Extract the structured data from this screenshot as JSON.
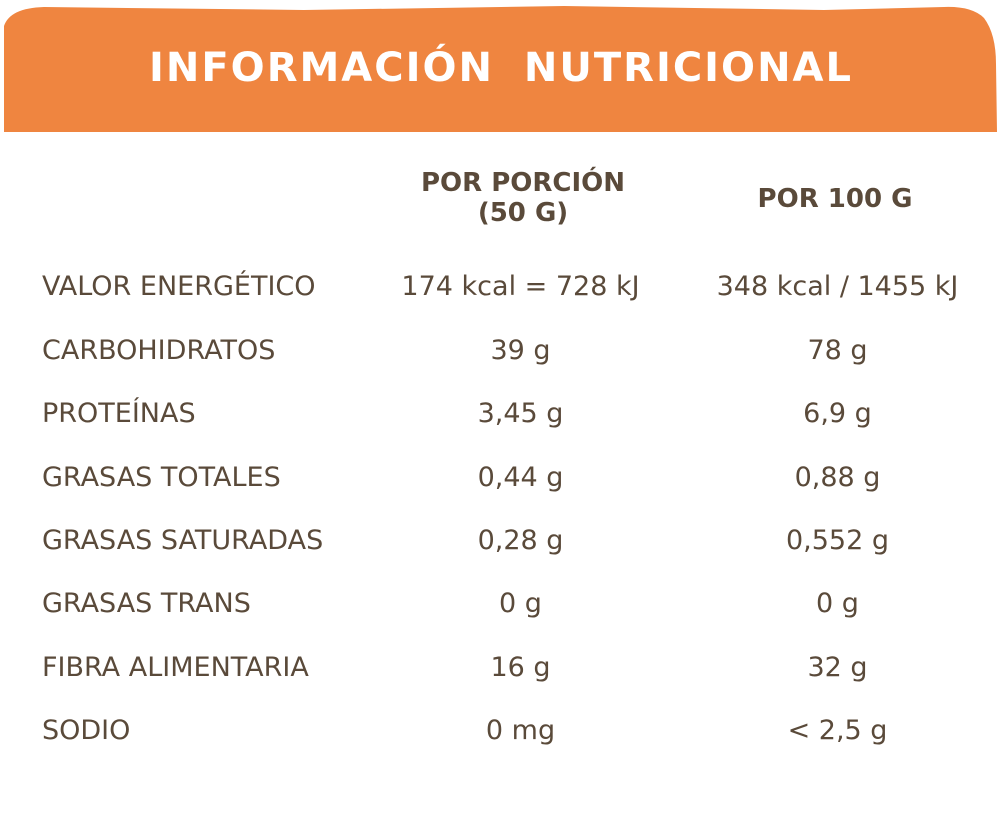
{
  "header": {
    "title": "INFORMACIÓN  NUTRICIONAL",
    "color": "#ef8540"
  },
  "columns": {
    "per_portion_line1": "POR PORCIÓN",
    "per_portion_line2": "(50 G)",
    "per_100": "POR 100 G"
  },
  "rows": [
    {
      "label": "VALOR ENERGÉTICO",
      "per_portion": "174 kcal = 728 kJ",
      "per_100": "348 kcal / 1455 kJ"
    },
    {
      "label": "CARBOHIDRATOS",
      "per_portion": "39 g",
      "per_100": "78 g"
    },
    {
      "label": "PROTEÍNAS",
      "per_portion": "3,45 g",
      "per_100": "6,9 g"
    },
    {
      "label": "GRASAS TOTALES",
      "per_portion": "0,44 g",
      "per_100": "0,88 g"
    },
    {
      "label": "GRASAS SATURADAS",
      "per_portion": "0,28 g",
      "per_100": "0,552 g"
    },
    {
      "label": "GRASAS TRANS",
      "per_portion": "0 g",
      "per_100": "0 g"
    },
    {
      "label": "FIBRA ALIMENTARIA",
      "per_portion": "16 g",
      "per_100": "32 g"
    },
    {
      "label": "SODIO",
      "per_portion": "0 mg",
      "per_100": "< 2,5 g"
    }
  ],
  "text_color": "#5a4a3a"
}
